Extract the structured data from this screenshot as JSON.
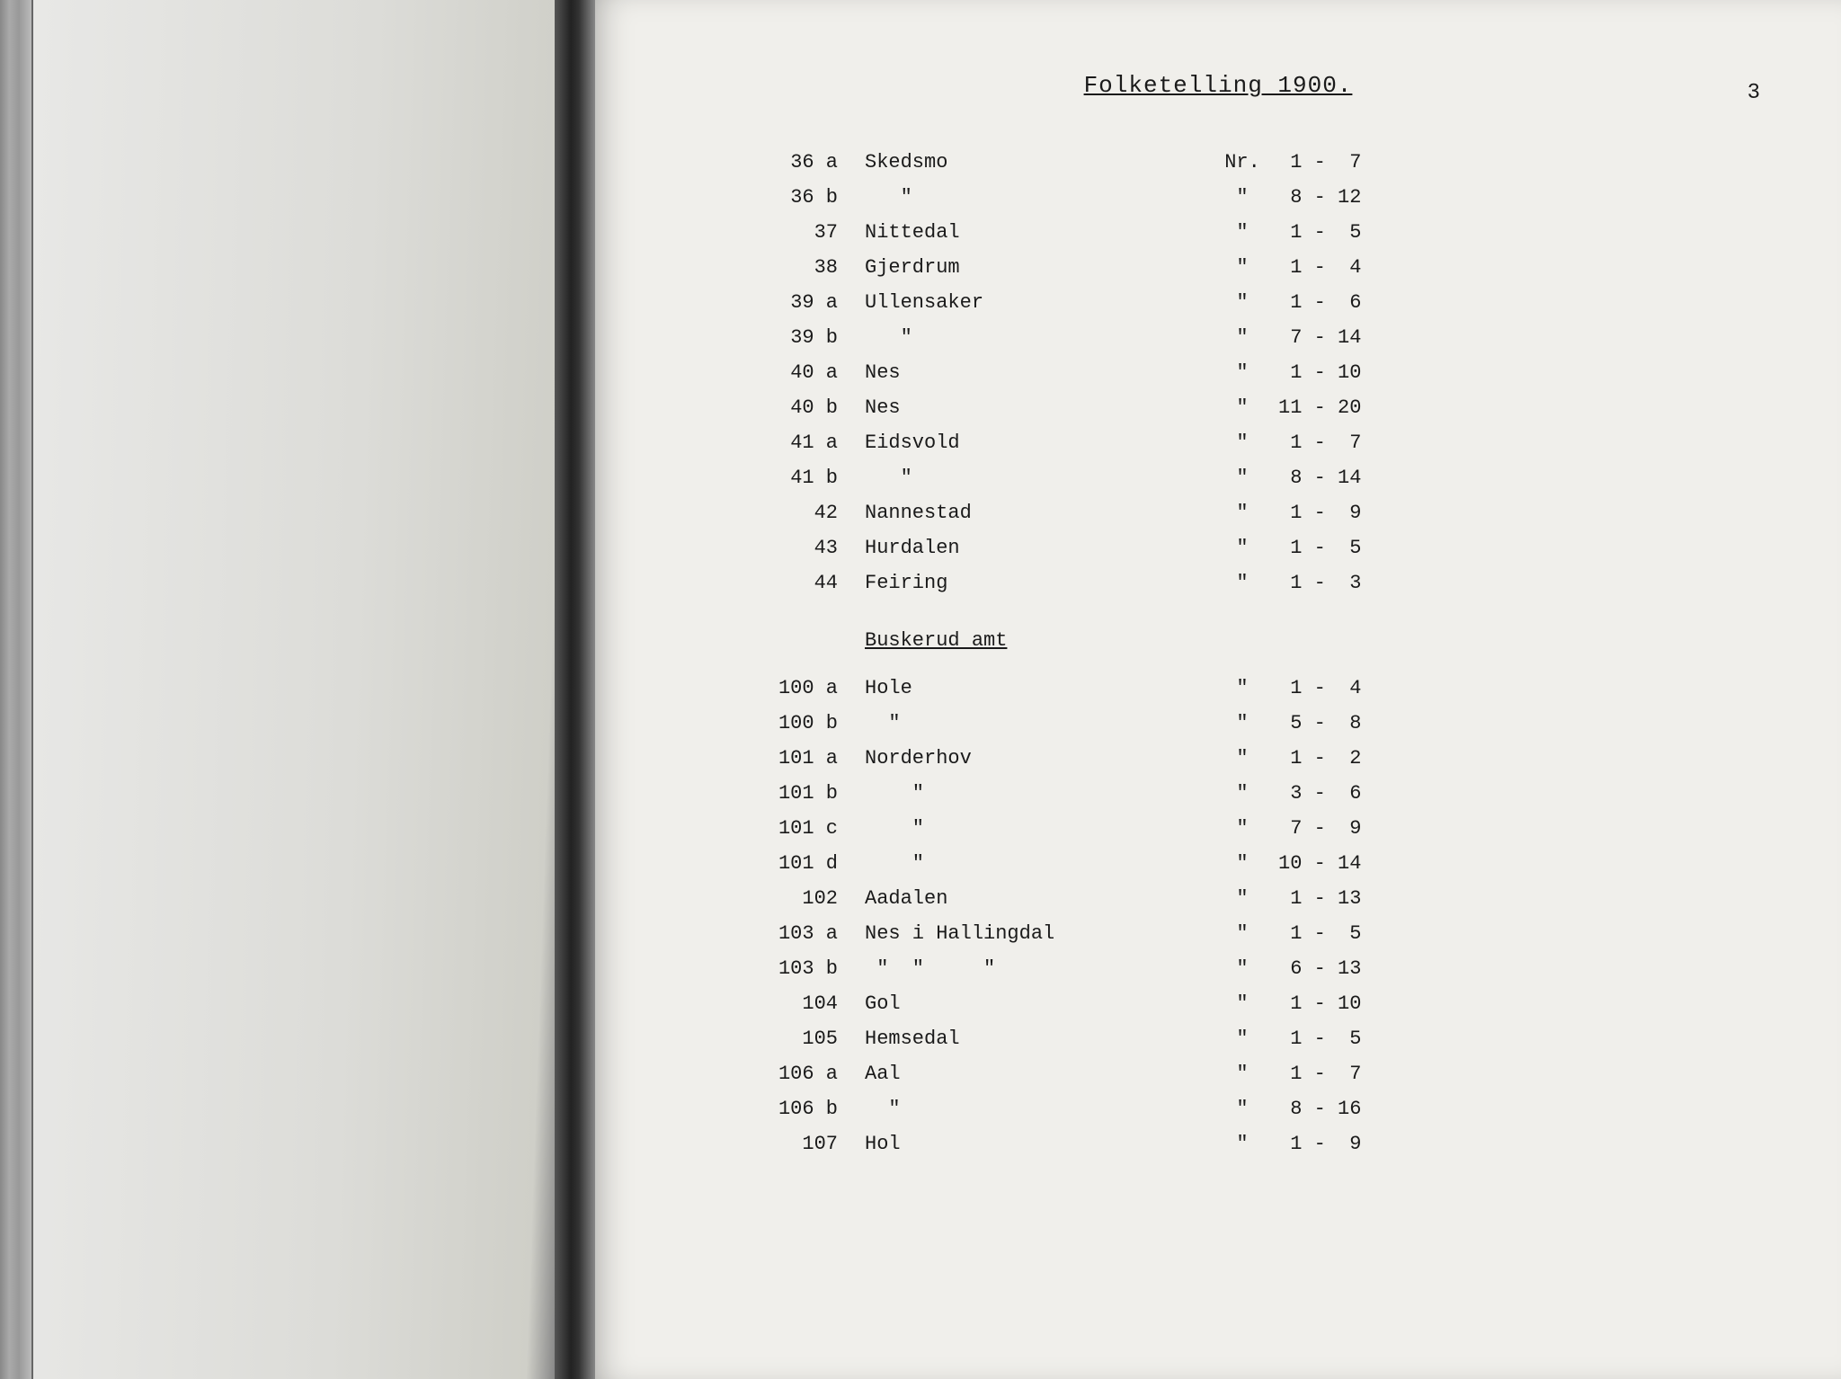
{
  "page": {
    "title": "Folketelling 1900.",
    "number": "3"
  },
  "section1": {
    "rows": [
      {
        "code": "36 a",
        "name": "Skedsmo",
        "prefix": "Nr.",
        "range": " 1 -  7"
      },
      {
        "code": "36 b",
        "name": "   \"",
        "prefix": "\"",
        "range": " 8 - 12"
      },
      {
        "code": "37",
        "name": "Nittedal",
        "prefix": "\"",
        "range": " 1 -  5"
      },
      {
        "code": "38",
        "name": "Gjerdrum",
        "prefix": "\"",
        "range": " 1 -  4"
      },
      {
        "code": "39 a",
        "name": "Ullensaker",
        "prefix": "\"",
        "range": " 1 -  6"
      },
      {
        "code": "39 b",
        "name": "   \"",
        "prefix": "\"",
        "range": " 7 - 14"
      },
      {
        "code": "40 a",
        "name": "Nes",
        "prefix": "\"",
        "range": " 1 - 10"
      },
      {
        "code": "40 b",
        "name": "Nes",
        "prefix": "\"",
        "range": "11 - 20"
      },
      {
        "code": "41 a",
        "name": "Eidsvold",
        "prefix": "\"",
        "range": " 1 -  7"
      },
      {
        "code": "41 b",
        "name": "   \"",
        "prefix": "\"",
        "range": " 8 - 14"
      },
      {
        "code": "42",
        "name": "Nannestad",
        "prefix": "\"",
        "range": " 1 -  9"
      },
      {
        "code": "43",
        "name": "Hurdalen",
        "prefix": "\"",
        "range": " 1 -  5"
      },
      {
        "code": "44",
        "name": "Feiring",
        "prefix": "\"",
        "range": " 1 -  3"
      }
    ]
  },
  "section2": {
    "header": "Buskerud amt",
    "rows": [
      {
        "code": "100 a",
        "name": "Hole",
        "prefix": "\"",
        "range": " 1 -  4"
      },
      {
        "code": "100 b",
        "name": "  \"",
        "prefix": "\"",
        "range": " 5 -  8"
      },
      {
        "code": "101 a",
        "name": "Norderhov",
        "prefix": "\"",
        "range": " 1 -  2"
      },
      {
        "code": "101 b",
        "name": "    \"",
        "prefix": "\"",
        "range": " 3 -  6"
      },
      {
        "code": "101 c",
        "name": "    \"",
        "prefix": "\"",
        "range": " 7 -  9"
      },
      {
        "code": "101 d",
        "name": "    \"",
        "prefix": "\"",
        "range": "10 - 14"
      },
      {
        "code": "102",
        "name": "Aadalen",
        "prefix": "\"",
        "range": " 1 - 13"
      },
      {
        "code": "103 a",
        "name": "Nes i Hallingdal",
        "prefix": "\"",
        "range": " 1 -  5"
      },
      {
        "code": "103 b",
        "name": " \"  \"     \"",
        "prefix": "\"",
        "range": " 6 - 13"
      },
      {
        "code": "104",
        "name": "Gol",
        "prefix": "\"",
        "range": " 1 - 10"
      },
      {
        "code": "105",
        "name": "Hemsedal",
        "prefix": "\"",
        "range": " 1 -  5"
      },
      {
        "code": "106 a",
        "name": "Aal",
        "prefix": "\"",
        "range": " 1 -  7"
      },
      {
        "code": "106 b",
        "name": "  \"",
        "prefix": "\"",
        "range": " 8 - 16"
      },
      {
        "code": "107",
        "name": "Hol",
        "prefix": "\"",
        "range": " 1 -  9"
      }
    ]
  }
}
